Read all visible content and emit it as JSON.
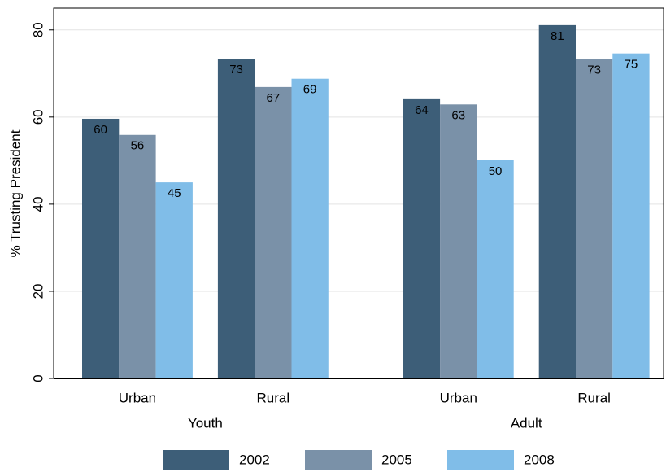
{
  "chart_data": {
    "type": "bar",
    "y_label": "% Trusting President",
    "groups": [
      {
        "name": "Youth",
        "categories": [
          "Urban",
          "Rural"
        ]
      },
      {
        "name": "Adult",
        "categories": [
          "Urban",
          "Rural"
        ]
      }
    ],
    "series": [
      {
        "name": "2002",
        "color": "#3d5e78",
        "values": [
          59.6,
          73.4,
          64.1,
          81.1
        ],
        "value_labels": [
          "60",
          "73",
          "64",
          "81"
        ]
      },
      {
        "name": "2005",
        "color": "#7a91a8",
        "values": [
          55.9,
          66.9,
          62.9,
          73.3
        ],
        "value_labels": [
          "56",
          "67",
          "63",
          "73"
        ]
      },
      {
        "name": "2008",
        "color": "#80bde8",
        "values": [
          45.0,
          68.8,
          50.1,
          74.6
        ],
        "value_labels": [
          "45",
          "69",
          "50",
          "75"
        ]
      }
    ],
    "ylim": [
      0,
      85
    ],
    "yticks": [
      0,
      20,
      40,
      60,
      80
    ],
    "grid": true,
    "legend": "bottom"
  }
}
